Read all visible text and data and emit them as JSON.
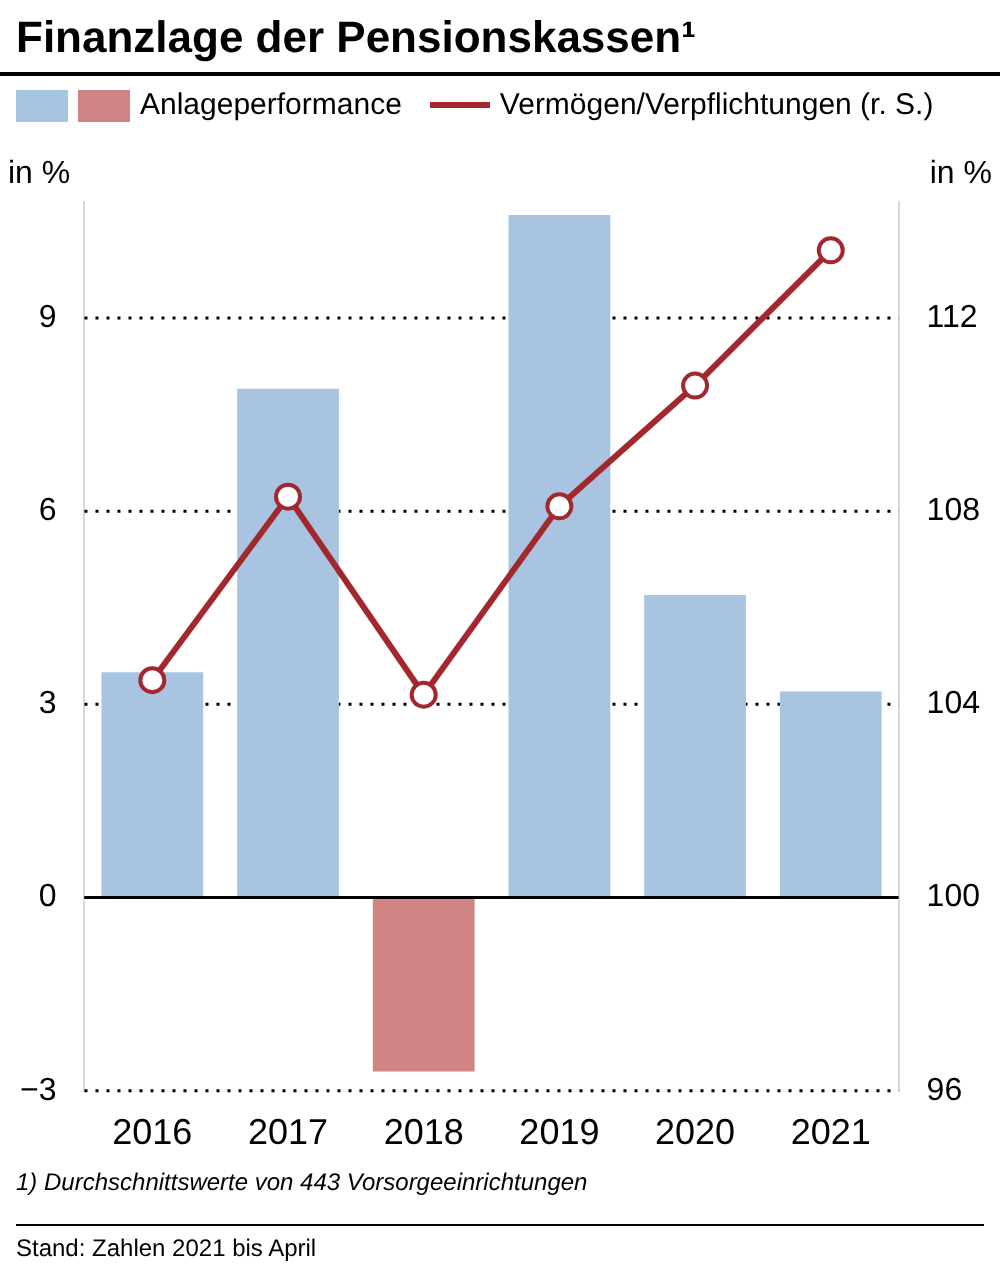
{
  "chart_data": {
    "type": "bar",
    "title": "Finanzlage der Pensionskassen¹",
    "categories": [
      "2016",
      "2017",
      "2018",
      "2019",
      "2020",
      "2021"
    ],
    "series": [
      {
        "name": "Anlageperformance",
        "colors": [
          "#a8c4e0",
          "#a8c4e0",
          "#d08484",
          "#a8c4e0",
          "#a8c4e0",
          "#a8c4e0"
        ],
        "values": [
          3.5,
          7.9,
          -2.7,
          10.6,
          4.7,
          3.2
        ]
      },
      {
        "name": "Vermögen/Verpflichtungen (r. S.)",
        "type": "line",
        "axis": "y2",
        "color": "#a3282e",
        "values": [
          104.5,
          108.3,
          104.2,
          108.1,
          110.6,
          113.4
        ]
      }
    ],
    "ylabel": "in %",
    "y2label": "in %",
    "ylim": [
      -3,
      10.8
    ],
    "yticks": [
      {
        "value": -3,
        "label": "−3"
      },
      0,
      3,
      6,
      9
    ],
    "y2lim": [
      96,
      114.4
    ],
    "y2ticks": [
      96,
      100,
      104,
      108,
      112
    ],
    "grid": "y",
    "legend": "top",
    "marker": "circle",
    "annotations": [
      "1) Durchschnittswerte von 443 Vorsorgeeinrichtungen",
      "Stand: Zahlen 2021 bis April"
    ]
  }
}
